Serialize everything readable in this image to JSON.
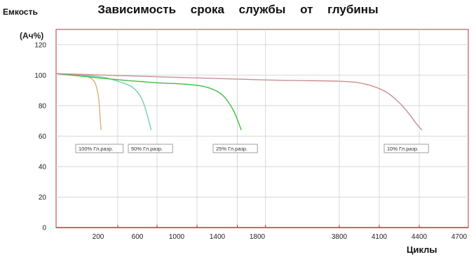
{
  "chart_data": {
    "type": "line",
    "title": "Зависимость срока службы от глубины",
    "ylabel_line1": "Емкость",
    "ylabel_line2": "(Ач%)",
    "xlabel": "Циклы",
    "ylim": [
      0,
      130
    ],
    "yticks": [
      0,
      20,
      40,
      60,
      80,
      100,
      120
    ],
    "xtick_labels": [
      "200",
      "600",
      "1000",
      "1400",
      "1800",
      "3800",
      "4100",
      "4400",
      "4700"
    ],
    "grid": true,
    "series": [
      {
        "name": "100% Гл.разр.",
        "color": "#d9b07a",
        "points": [
          [
            0,
            101
          ],
          [
            100,
            100
          ],
          [
            150,
            99
          ],
          [
            185,
            95
          ],
          [
            205,
            85
          ],
          [
            220,
            72
          ],
          [
            230,
            64
          ]
        ]
      },
      {
        "name": "50% Гл.разр.",
        "color": "#6fcfb0",
        "points": [
          [
            0,
            101
          ],
          [
            200,
            99
          ],
          [
            400,
            96
          ],
          [
            550,
            92
          ],
          [
            640,
            85
          ],
          [
            700,
            74
          ],
          [
            740,
            64
          ]
        ]
      },
      {
        "name": "25% Гл.разр.",
        "color": "#3fbf3f",
        "points": [
          [
            0,
            101
          ],
          [
            400,
            97
          ],
          [
            800,
            95
          ],
          [
            1100,
            94
          ],
          [
            1300,
            92
          ],
          [
            1450,
            87
          ],
          [
            1560,
            77
          ],
          [
            1640,
            64
          ]
        ]
      },
      {
        "name": "10% Гл.разр.",
        "color": "#c98f8f",
        "points": [
          [
            0,
            101
          ],
          [
            1800,
            97
          ],
          [
            3800,
            96
          ],
          [
            4000,
            94
          ],
          [
            4150,
            89
          ],
          [
            4250,
            82
          ],
          [
            4320,
            75
          ],
          [
            4380,
            68
          ],
          [
            4420,
            64
          ]
        ]
      }
    ]
  }
}
